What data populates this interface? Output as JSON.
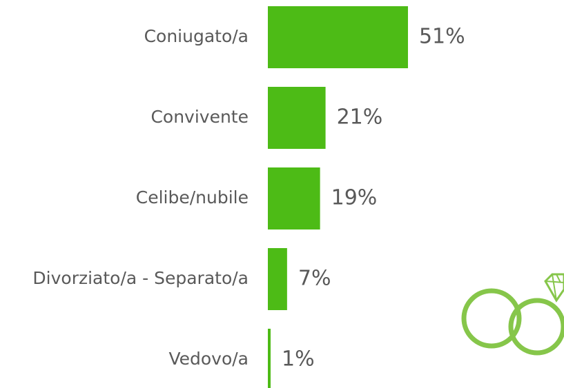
{
  "chart_data": {
    "type": "bar",
    "orientation": "horizontal",
    "categories": [
      "Coniugato/a",
      "Convivente",
      "Celibe/nubile",
      "Divorziato/a - Separato/a",
      "Vedovo/a"
    ],
    "values": [
      51,
      21,
      19,
      7,
      1
    ],
    "value_labels": [
      "51%",
      "21%",
      "19%",
      "7%",
      "1%"
    ],
    "color": "#4dbb16"
  }
}
